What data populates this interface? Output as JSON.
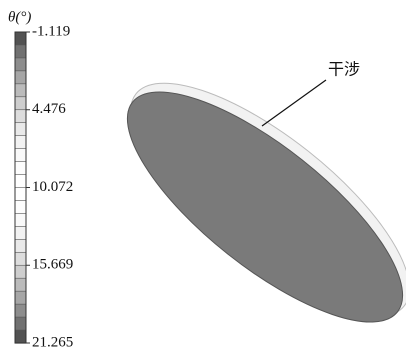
{
  "colorbar": {
    "title": "θ(°)",
    "ticks": [
      "-1.119",
      "4.476",
      "10.072",
      "15.669",
      "21.265"
    ]
  },
  "annotation": "干涉"
}
